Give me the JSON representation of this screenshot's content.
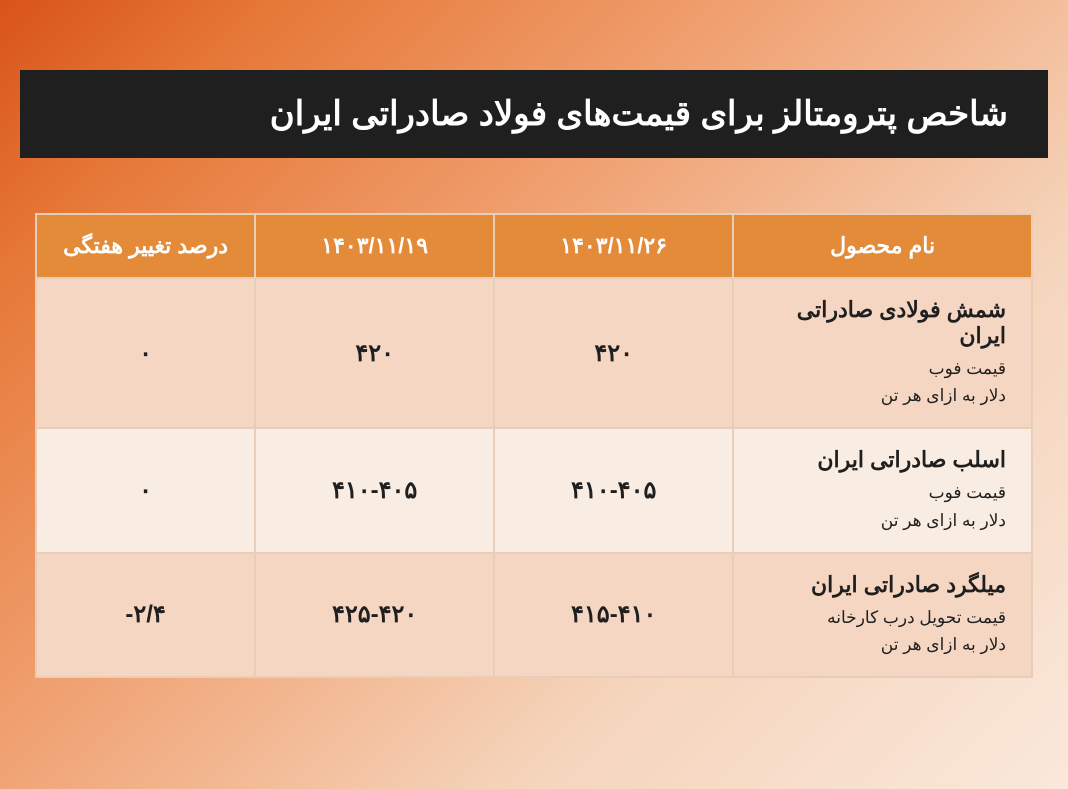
{
  "title": "شاخص پترومتالز برای قیمت‌های فولاد صادراتی ایران",
  "colors": {
    "title_bg": "#1f1f1f",
    "title_fg": "#ffffff",
    "header_bg": "#e38b38",
    "header_fg": "#ffffff",
    "row_odd_bg": "#f5d6c2",
    "row_even_bg": "#f9ece2",
    "border": "#e8cdb8",
    "cell_text": "#1f1f1f",
    "page_gradient_from": "#d8531a",
    "page_gradient_to": "#fae8db"
  },
  "table": {
    "columns": [
      "نام محصول",
      "۱۴۰۳/۱۱/۲۶",
      "۱۴۰۳/۱۱/۱۹",
      "درصد تغییر هفتگی"
    ],
    "rows": [
      {
        "product_name": "شمش فولادی صادراتی ایران",
        "product_sub1": "قیمت فوب",
        "product_sub2": "دلار به ازای هر تن",
        "date1": "۴۲۰",
        "date2": "۴۲۰",
        "change": "۰"
      },
      {
        "product_name": "اسلب صادراتی ایران",
        "product_sub1": "قیمت فوب",
        "product_sub2": "دلار به ازای هر تن",
        "date1": "۴۱۰-۴۰۵",
        "date2": "۴۱۰-۴۰۵",
        "change": "۰"
      },
      {
        "product_name": "میلگرد صادراتی ایران",
        "product_sub1": "قیمت تحویل درب کارخانه",
        "product_sub2": "دلار به ازای هر تن",
        "date1": "۴۱۵-۴۱۰",
        "date2": "۴۲۵-۴۲۰",
        "change": "۲/۴-"
      }
    ]
  }
}
